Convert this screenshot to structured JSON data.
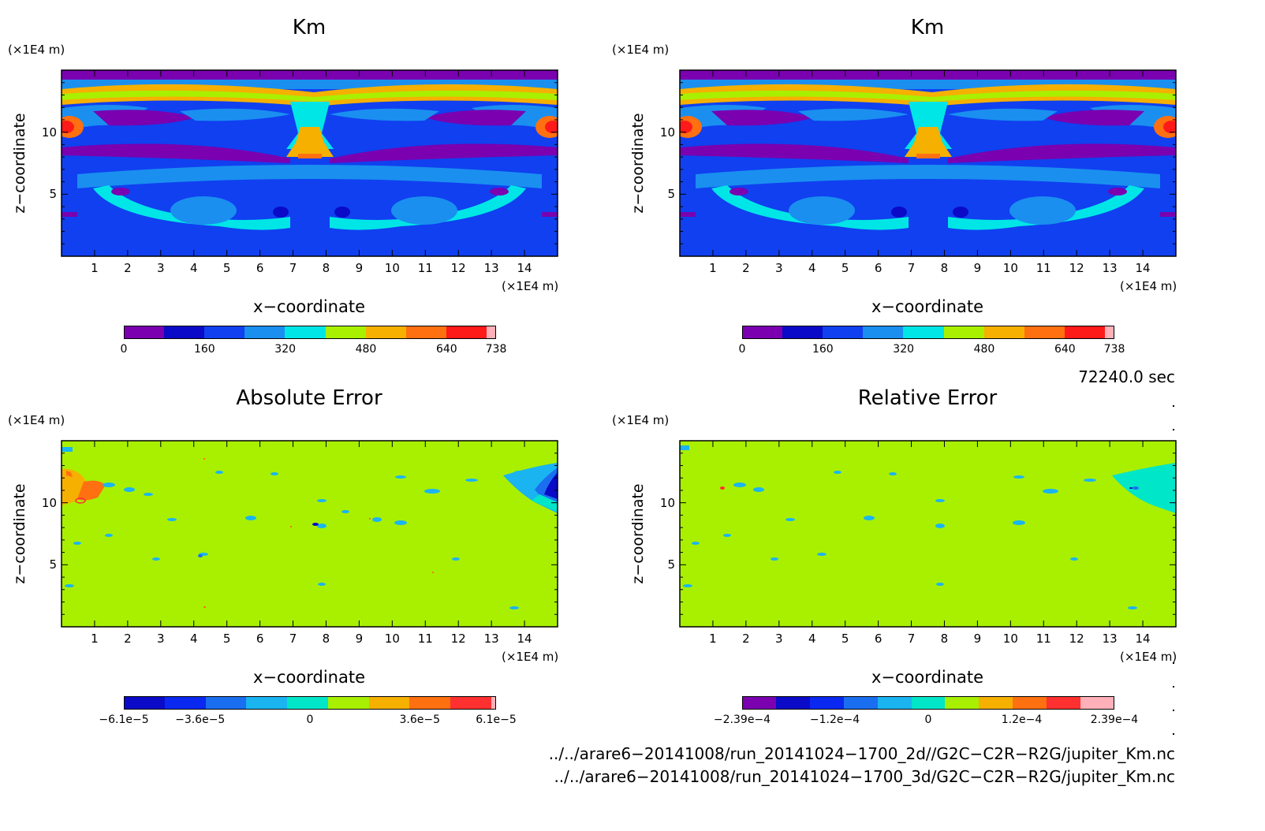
{
  "chart_data": [
    {
      "type": "heatmap",
      "title": "Km",
      "xlabel": "x−coordinate",
      "ylabel": "z−coordinate",
      "x_unit": "(×1E4 m)",
      "y_unit": "(×1E4 m)",
      "xlim": [
        0,
        15
      ],
      "ylim": [
        0,
        15
      ],
      "x_ticks": [
        "1",
        "2",
        "3",
        "4",
        "5",
        "6",
        "7",
        "8",
        "9",
        "10",
        "11",
        "12",
        "13",
        "14"
      ],
      "y_ticks": [
        "5",
        "10"
      ],
      "colorbar": {
        "colors": [
          "#7a00b0",
          "#0a0ac8",
          "#1040f0",
          "#1a8ff0",
          "#00e6e6",
          "#a8f000",
          "#f5b000",
          "#ff7010",
          "#ff1a1a",
          "#ffb0b8"
        ],
        "tick_labels": [
          "0",
          "160",
          "320",
          "480",
          "640",
          "738"
        ],
        "tick_values": [
          0,
          160,
          320,
          480,
          640,
          738
        ],
        "range": [
          0,
          738
        ]
      }
    },
    {
      "type": "heatmap",
      "title": "Km",
      "xlabel": "x−coordinate",
      "ylabel": "z−coordinate",
      "x_unit": "(×1E4 m)",
      "y_unit": "(×1E4 m)",
      "xlim": [
        0,
        15
      ],
      "ylim": [
        0,
        15
      ],
      "x_ticks": [
        "1",
        "2",
        "3",
        "4",
        "5",
        "6",
        "7",
        "8",
        "9",
        "10",
        "11",
        "12",
        "13",
        "14"
      ],
      "y_ticks": [
        "5",
        "10"
      ],
      "colorbar": {
        "colors": [
          "#7a00b0",
          "#0a0ac8",
          "#1040f0",
          "#1a8ff0",
          "#00e6e6",
          "#a8f000",
          "#f5b000",
          "#ff7010",
          "#ff1a1a",
          "#ffb0b8"
        ],
        "tick_labels": [
          "0",
          "160",
          "320",
          "480",
          "640",
          "738"
        ],
        "tick_values": [
          0,
          160,
          320,
          480,
          640,
          738
        ],
        "range": [
          0,
          738
        ]
      }
    },
    {
      "type": "heatmap",
      "title": "Absolute Error",
      "xlabel": "x−coordinate",
      "ylabel": "z−coordinate",
      "x_unit": "(×1E4 m)",
      "y_unit": "(×1E4 m)",
      "xlim": [
        0,
        15
      ],
      "ylim": [
        0,
        15
      ],
      "x_ticks": [
        "1",
        "2",
        "3",
        "4",
        "5",
        "6",
        "7",
        "8",
        "9",
        "10",
        "11",
        "12",
        "13",
        "14"
      ],
      "y_ticks": [
        "5",
        "10"
      ],
      "colorbar": {
        "colors": [
          "#0a0ac8",
          "#0a28f0",
          "#1a6ef0",
          "#1ab4f0",
          "#00e6c8",
          "#a8f000",
          "#f5b000",
          "#ff7010",
          "#ff3030",
          "#ffb0b8"
        ],
        "tick_labels": [
          "−6.1e−5",
          "−3.6e−5",
          "0",
          "3.6e−5",
          "6.1e−5"
        ],
        "tick_values": [
          -6.1e-05,
          -3.6e-05,
          0,
          3.6e-05,
          6.1e-05
        ],
        "range": [
          -6.1e-05,
          6.1e-05
        ]
      }
    },
    {
      "type": "heatmap",
      "title": "Relative Error",
      "xlabel": "x−coordinate",
      "ylabel": "z−coordinate",
      "x_unit": "(×1E4 m)",
      "y_unit": "(×1E4 m)",
      "xlim": [
        0,
        15
      ],
      "ylim": [
        0,
        15
      ],
      "x_ticks": [
        "1",
        "2",
        "3",
        "4",
        "5",
        "6",
        "7",
        "8",
        "9",
        "10",
        "11",
        "12",
        "13",
        "14"
      ],
      "y_ticks": [
        "5",
        "10"
      ],
      "colorbar": {
        "colors": [
          "#7a00b0",
          "#0a0ac8",
          "#0a28f0",
          "#1a6ef0",
          "#1ab4f0",
          "#00e6c8",
          "#a8f000",
          "#f5b000",
          "#ff7010",
          "#ff3030",
          "#ffb0b8"
        ],
        "tick_labels": [
          "−2.39e−4",
          "−1.2e−4",
          "0",
          "1.2e−4",
          "2.39e−4"
        ],
        "tick_values": [
          -0.000239,
          -0.00012,
          0,
          0.00012,
          0.000239
        ],
        "range": [
          -0.000239,
          0.000239
        ]
      }
    }
  ],
  "info": {
    "time": "72240.0 sec",
    "file1": "../../arare6−20141008/run_20141024−1700_2d//G2C−C2R−R2G/jupiter_Km.nc",
    "file2": "../../arare6−20141008/run_20141024−1700_3d/G2C−C2R−R2G/jupiter_Km.nc"
  }
}
